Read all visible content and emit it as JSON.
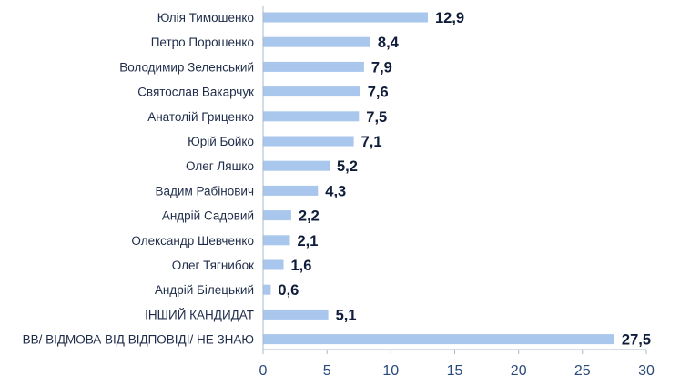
{
  "chart_data": {
    "type": "bar",
    "orientation": "horizontal",
    "categories": [
      "Юлія Тимошенко",
      "Петро Порошенко",
      "Володимир Зеленський",
      "Святослав Вакарчук",
      "Анатолій Гриценко",
      "Юрій Бойко",
      "Олег Ляшко",
      "Вадим Рабінович",
      "Андрій Садовий",
      "Олександр Шевченко",
      "Олег Тягнибок",
      "Андрій Білецький",
      "ІНШИЙ КАНДИДАТ",
      "ВВ/ ВІДМОВА ВІД ВІДПОВІДІ/ НЕ ЗНАЮ"
    ],
    "values": [
      12.9,
      8.4,
      7.9,
      7.6,
      7.5,
      7.1,
      5.2,
      4.3,
      2.2,
      2.1,
      1.6,
      0.6,
      5.1,
      27.5
    ],
    "value_labels": [
      "12,9",
      "8,4",
      "7,9",
      "7,6",
      "7,5",
      "7,1",
      "5,2",
      "4,3",
      "2,2",
      "2,1",
      "1,6",
      "0,6",
      "5,1",
      "27,5"
    ],
    "xlim": [
      0,
      30
    ],
    "xticks": [
      0,
      5,
      10,
      15,
      20,
      25,
      30
    ],
    "grid": false,
    "legend": false,
    "title": "",
    "xlabel": "",
    "ylabel": "",
    "bar_color": "#a9c6ec",
    "axis_color": "#a8b8cc",
    "tick_label_color": "#2a4a7a",
    "value_label_color": "#0f1c3a",
    "category_label_color": "#1f2d4a"
  }
}
